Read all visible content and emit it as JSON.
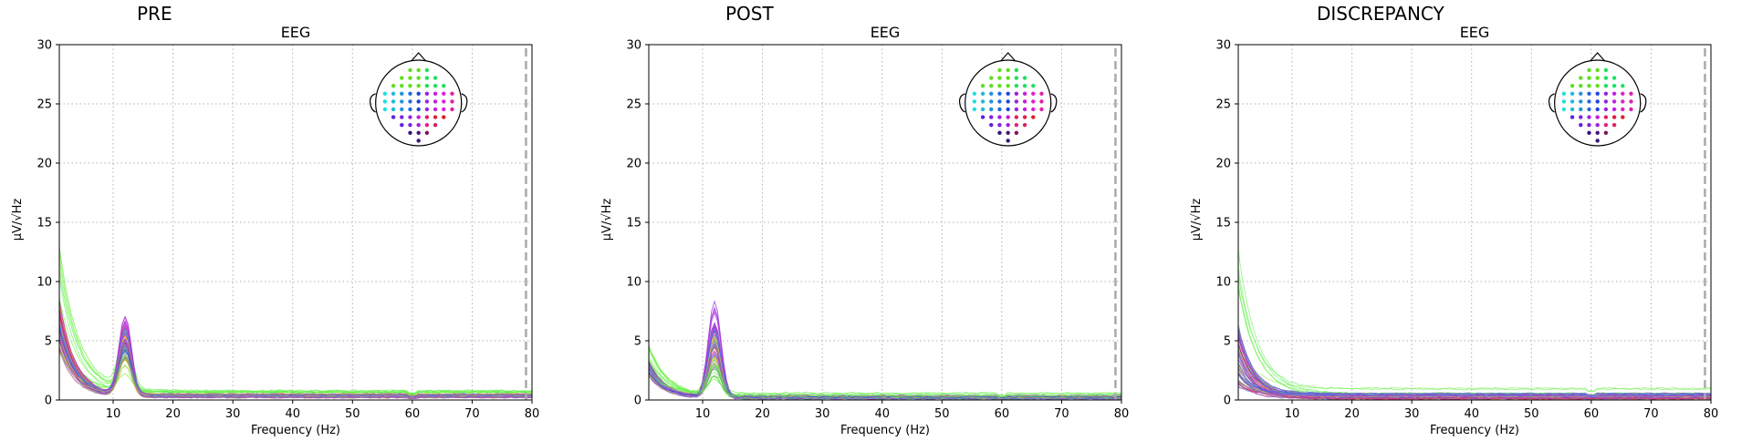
{
  "chart_data": [
    {
      "type": "line",
      "panel_title": "PRE",
      "subtitle": "EEG",
      "xlabel": "Frequency (Hz)",
      "ylabel": "µV/√Hz",
      "xlim": [
        1,
        80
      ],
      "ylim": [
        0,
        30
      ],
      "xticks": [
        10,
        20,
        30,
        40,
        50,
        60,
        70,
        80
      ],
      "yticks": [
        0,
        5,
        10,
        15,
        20,
        25,
        30
      ],
      "grid": true,
      "reference_line_x": 79,
      "channel_count": 60,
      "x": [
        1,
        2,
        3,
        4,
        5,
        6,
        7,
        8,
        9,
        10,
        11,
        12,
        13,
        14,
        15,
        16,
        18,
        20,
        25,
        30,
        35,
        40,
        45,
        50,
        55,
        58,
        60,
        62,
        65,
        70,
        75,
        80
      ],
      "series_profile": {
        "low_freq_start": [
          4,
          14
        ],
        "alpha_peak_hz": 12,
        "alpha_peak_max": 8,
        "tail_level": [
          0.2,
          0.8
        ]
      }
    },
    {
      "type": "line",
      "panel_title": "POST",
      "subtitle": "EEG",
      "xlabel": "Frequency (Hz)",
      "ylabel": "µV/√Hz",
      "xlim": [
        1,
        80
      ],
      "ylim": [
        0,
        30
      ],
      "xticks": [
        10,
        20,
        30,
        40,
        50,
        60,
        70,
        80
      ],
      "yticks": [
        0,
        5,
        10,
        15,
        20,
        25,
        30
      ],
      "grid": true,
      "reference_line_x": 79,
      "channel_count": 60,
      "x": [
        1,
        2,
        3,
        4,
        5,
        6,
        7,
        8,
        9,
        10,
        11,
        12,
        13,
        14,
        15,
        16,
        18,
        20,
        25,
        30,
        35,
        40,
        45,
        50,
        55,
        58,
        60,
        62,
        65,
        70,
        75,
        80
      ],
      "series_profile": {
        "low_freq_start": [
          2,
          5
        ],
        "alpha_peak_hz": 12,
        "alpha_peak_max": 8,
        "tail_level": [
          0.1,
          0.6
        ]
      }
    },
    {
      "type": "line",
      "panel_title": "DISCREPANCY",
      "subtitle": "EEG",
      "xlabel": "Frequency (Hz)",
      "ylabel": "µV/√Hz",
      "xlim": [
        1,
        80
      ],
      "ylim": [
        0,
        30
      ],
      "xticks": [
        10,
        20,
        30,
        40,
        50,
        60,
        70,
        80
      ],
      "yticks": [
        0,
        5,
        10,
        15,
        20,
        25,
        30
      ],
      "grid": true,
      "reference_line_x": 79,
      "channel_count": 60,
      "x": [
        1,
        2,
        3,
        4,
        5,
        6,
        7,
        8,
        9,
        10,
        11,
        12,
        13,
        14,
        15,
        16,
        18,
        20,
        25,
        30,
        35,
        40,
        45,
        50,
        55,
        58,
        60,
        62,
        65,
        70,
        75,
        80
      ],
      "series_profile": {
        "low_freq_start": [
          1,
          13
        ],
        "alpha_peak_hz": null,
        "alpha_peak_max": 0,
        "tail_level": [
          0.1,
          1.0
        ]
      }
    }
  ]
}
